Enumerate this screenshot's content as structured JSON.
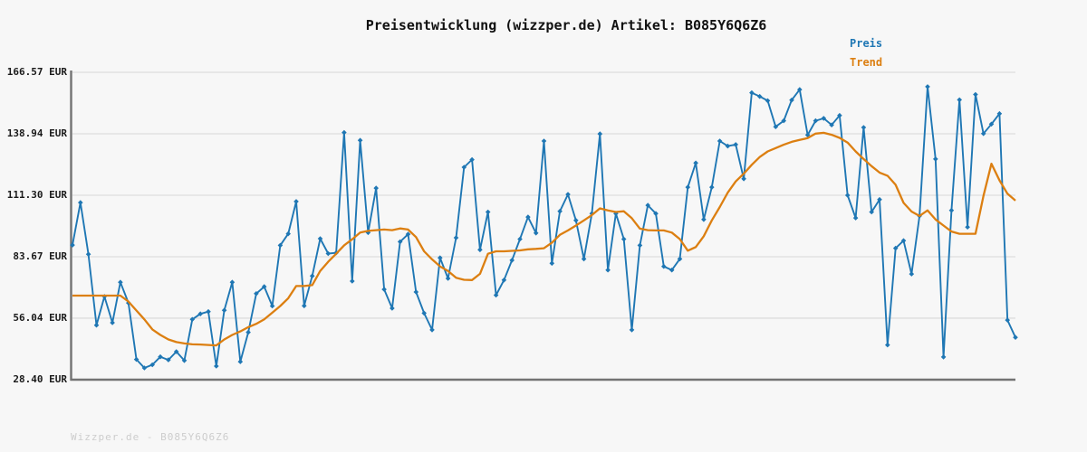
{
  "title": "Preisentwicklung (wizzper.de) Artikel: B085Y6Q6Z6",
  "legend": {
    "price_label": "Preis",
    "trend_label": "Trend"
  },
  "footer": "Wizzper.de - B085Y6Q6Z6",
  "colors": {
    "background": "#f7f7f7",
    "price": "#1f77b4",
    "trend": "#dc7f11",
    "grid": "#e2e2e2",
    "axis": "#737373",
    "title_text": "#111111",
    "tick_text": "#1a1a1a",
    "footer_text": "#cdcdcd"
  },
  "y_axis": {
    "unit": "EUR",
    "tick_labels": [
      "166.57 EUR",
      "138.94 EUR",
      "111.30 EUR",
      "83.67 EUR",
      "56.04 EUR",
      "28.40 EUR"
    ],
    "tick_values": [
      166.57,
      138.94,
      111.3,
      83.67,
      56.04,
      28.4
    ]
  },
  "chart_data": {
    "type": "line",
    "title": "Preisentwicklung (wizzper.de) Artikel: B085Y6Q6Z6",
    "xlabel": "",
    "ylabel": "EUR",
    "ylim": [
      28.4,
      166.57
    ],
    "x_axis": "119 evenly spaced observations, no x tick labels shown",
    "grid": "horizontal",
    "legend_position": "top-right above plot",
    "series": [
      {
        "name": "Preis",
        "color": "#1f77b4",
        "marker": "diamond",
        "values": [
          88.9,
          108.0,
          84.8,
          52.9,
          65.8,
          54.0,
          72.2,
          62.9,
          37.5,
          33.7,
          35.1,
          38.7,
          37.3,
          41.0,
          37.0,
          55.5,
          58.0,
          59.0,
          34.5,
          59.6,
          72.2,
          36.5,
          49.7,
          67.1,
          70.2,
          61.5,
          88.8,
          94.0,
          108.5,
          61.6,
          75.0,
          91.8,
          85.1,
          85.4,
          139.5,
          72.7,
          136.0,
          94.5,
          114.5,
          69.0,
          60.5,
          90.4,
          93.8,
          67.8,
          58.3,
          50.8,
          83.2,
          73.9,
          92.2,
          123.9,
          127.3,
          86.8,
          103.8,
          66.4,
          73.2,
          82.1,
          91.6,
          101.5,
          94.3,
          135.7,
          80.7,
          104.1,
          111.7,
          100.0,
          82.7,
          103.1,
          138.9,
          77.7,
          103.1,
          91.6,
          50.8,
          88.8,
          106.8,
          103.1,
          79.3,
          77.7,
          82.7,
          114.9,
          125.8,
          100.4,
          114.9,
          135.7,
          133.4,
          134.1,
          118.7,
          157.4,
          155.7,
          153.8,
          142.1,
          144.8,
          154.1,
          158.8,
          138.4,
          144.8,
          145.9,
          142.9,
          147.2,
          111.3,
          101.1,
          141.8,
          103.8,
          109.4,
          44.0,
          87.5,
          90.9,
          75.9,
          102.0,
          160.1,
          127.6,
          38.6,
          104.5,
          154.2,
          97.0,
          156.6,
          139.0,
          143.3,
          148.0,
          55.2,
          47.4
        ]
      },
      {
        "name": "Trend",
        "color": "#dc7f11",
        "marker": "none",
        "values": [
          66.2,
          66.2,
          66.2,
          66.2,
          66.2,
          66.2,
          66.2,
          63.5,
          59.5,
          55.5,
          51.0,
          48.5,
          46.5,
          45.3,
          44.7,
          44.3,
          44.2,
          44.0,
          43.8,
          46.5,
          48.5,
          50.1,
          52.0,
          53.5,
          55.5,
          58.5,
          61.5,
          65.0,
          70.5,
          70.5,
          70.9,
          77.3,
          81.4,
          85.0,
          88.8,
          91.5,
          94.5,
          95.3,
          95.6,
          95.9,
          95.6,
          96.4,
          95.9,
          92.5,
          86.1,
          82.5,
          79.3,
          77.3,
          74.2,
          73.3,
          73.2,
          76.0,
          85.0,
          86.1,
          86.1,
          86.3,
          86.5,
          87.0,
          87.2,
          87.5,
          90.0,
          93.5,
          95.5,
          97.7,
          100.0,
          102.4,
          105.4,
          104.5,
          103.8,
          104.1,
          101.0,
          96.3,
          95.6,
          95.5,
          95.5,
          94.5,
          91.6,
          86.4,
          88.0,
          92.9,
          100.0,
          106.0,
          112.5,
          117.5,
          121.0,
          125.0,
          128.5,
          131.0,
          132.5,
          134.0,
          135.3,
          136.2,
          137.0,
          139.0,
          139.4,
          138.5,
          137.1,
          135.0,
          131.0,
          127.6,
          124.4,
          121.5,
          120.1,
          116.0,
          107.9,
          104.0,
          102.0,
          104.5,
          100.4,
          97.7,
          95.0,
          94.0,
          94.0,
          94.0,
          111.0,
          125.5,
          118.0,
          112.0,
          108.9
        ]
      }
    ]
  }
}
